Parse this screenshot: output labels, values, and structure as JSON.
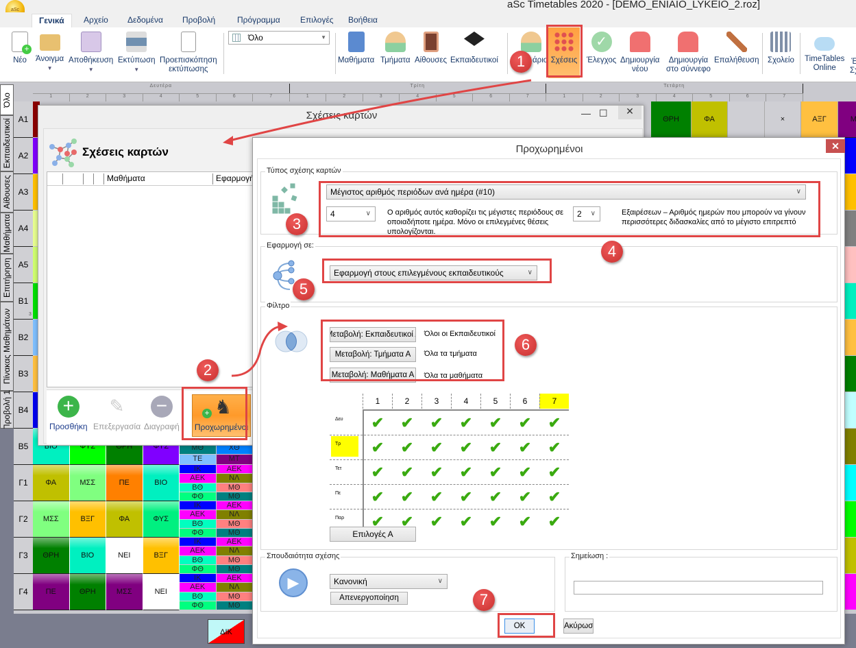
{
  "app": {
    "title": "aSc Timetables 2020  - [DEMO_ENIAIO_LYKEIO_2.roz]",
    "logo_text": "aSc"
  },
  "tabs": [
    "Γενικά",
    "Αρχείο",
    "Δεδομένα",
    "Προβολή",
    "Πρόγραμμα",
    "Επιλογές",
    "Βοήθεια"
  ],
  "ribbon": {
    "new": "Νέο",
    "open": "Άνοιγμα",
    "save": "Αποθήκευση",
    "print": "Εκτύπωση",
    "preview_1": "Προεπισκόπηση",
    "preview_2": "εκτύπωσης",
    "view_select": "Όλο",
    "subjects": "Μαθήματα",
    "classes": "Τμήματα",
    "rooms": "Αίθουσες",
    "teachers": "Εκπαιδευτικοί",
    "schedule_partial": "άριο",
    "relations": "Σχέσεις",
    "check": "Έλεγχος",
    "create_1": "Δημιουργία",
    "create_2": "νέου",
    "cloud_1": "Δημιουργία",
    "cloud_2": "στο σύννεφο",
    "verify": "Επαλήθευση",
    "school": "Σχολείο",
    "online_1": "TimeTables",
    "online_2": "Online",
    "cut_1": "Έ",
    "cut_2": "Σχ"
  },
  "side_tabs": [
    "Όλο",
    "Εκπαιδευτικοί",
    "Αίθουσες",
    "Μαθήματα",
    "Επιτήρηση",
    "Πίνακας Μαθημάτων",
    "Προβολή 1"
  ],
  "timetable": {
    "days": [
      "Δευτέρα",
      "Τρίτη",
      "Τετάρτη"
    ],
    "periods": [
      "1",
      "2",
      "3",
      "4",
      "5",
      "6",
      "7"
    ],
    "row_labels": [
      "Α1",
      "Α2",
      "Α3",
      "Α4",
      "Α5",
      "Β1",
      "Β2",
      "Β3",
      "Β4",
      "Β5",
      "Γ1",
      "Γ2",
      "Γ3",
      "Γ4"
    ],
    "b1_marker": "3",
    "row_colors": [
      "#8b0000",
      "#8000ff",
      "#ffc000",
      "#e8ff90",
      "#d0ff70",
      "#00e000",
      "#80c0ff",
      "#ffc040",
      "#0000f0"
    ],
    "lower_rows": [
      {
        "cells": [
          {
            "t": "ΒΙΟ",
            "c": "#00f0c0"
          },
          {
            "t": "ΦΥΣ",
            "c": "#00ff00"
          },
          {
            "t": "ΘΡΗ",
            "c": "#008000"
          },
          {
            "t": "ΦΥΣ",
            "c": "#8000ff"
          }
        ],
        "split5": [
          {
            "t": "ΜΘ",
            "c": "#008080"
          },
          {
            "t": "ΤΕ",
            "c": "#80c0ff"
          }
        ],
        "split6": [
          {
            "t": "ΧΘ",
            "c": "#0080ff"
          },
          {
            "t": "ΜΤ",
            "c": "#800080"
          }
        ]
      },
      {
        "cells": [
          {
            "t": "ΦΑ",
            "c": "#c0c000"
          },
          {
            "t": "ΜΣΣ",
            "c": "#80ff80"
          },
          {
            "t": "ΠΕ",
            "c": "#ff8000"
          },
          {
            "t": "ΒΙΟ",
            "c": "#00f0c0"
          }
        ],
        "split5": [
          {
            "t": "ΙΚ",
            "c": "#0000ff"
          },
          {
            "t": "ΑΕΚ",
            "c": "#ff00ff"
          },
          {
            "t": "ΒΘ",
            "c": "#00ffc0"
          },
          {
            "t": "ΦΘ",
            "c": "#00ff80"
          }
        ],
        "split6": [
          {
            "t": "ΑΕΚ",
            "c": "#ff00ff"
          },
          {
            "t": "ΝΛ",
            "c": "#808000"
          },
          {
            "t": "ΜΘ",
            "c": "#ff8080"
          },
          {
            "t": "ΜΘ",
            "c": "#008080"
          }
        ]
      },
      {
        "cells": [
          {
            "t": "ΜΣΣ",
            "c": "#80ff80"
          },
          {
            "t": "ΒΞΓ",
            "c": "#ffc000"
          },
          {
            "t": "ΦΑ",
            "c": "#c0c000"
          },
          {
            "t": "ΦΥΣ",
            "c": "#00f080"
          }
        ],
        "split5": [
          {
            "t": "ΙΚ",
            "c": "#0000ff"
          },
          {
            "t": "ΑΕΚ",
            "c": "#ff00ff"
          },
          {
            "t": "ΒΘ",
            "c": "#00ffc0"
          },
          {
            "t": "ΦΘ",
            "c": "#00ff80"
          }
        ],
        "split6": [
          {
            "t": "ΑΕΚ",
            "c": "#ff00ff"
          },
          {
            "t": "ΝΛ",
            "c": "#808000"
          },
          {
            "t": "ΜΘ",
            "c": "#ff8080"
          },
          {
            "t": "ΜΘ",
            "c": "#008080"
          }
        ]
      },
      {
        "cells": [
          {
            "t": "ΘΡΗ",
            "c": "#008000"
          },
          {
            "t": "ΒΙΟ",
            "c": "#00f0c0"
          },
          {
            "t": "ΝΕΙ",
            "c": "#ffffff"
          },
          {
            "t": "ΒΞΓ",
            "c": "#ffc000"
          }
        ],
        "split5": [
          {
            "t": "ΙΚ",
            "c": "#0000ff"
          },
          {
            "t": "ΑΕΚ",
            "c": "#ff00ff"
          },
          {
            "t": "ΒΘ",
            "c": "#00ffc0"
          },
          {
            "t": "ΦΘ",
            "c": "#00ff80"
          }
        ],
        "split6": [
          {
            "t": "ΑΕΚ",
            "c": "#ff00ff"
          },
          {
            "t": "ΝΛ",
            "c": "#808000"
          },
          {
            "t": "ΜΘ",
            "c": "#ff8080"
          },
          {
            "t": "ΜΘ",
            "c": "#008080"
          }
        ]
      },
      {
        "cells": [
          {
            "t": "ΠΕ",
            "c": "#800080"
          },
          {
            "t": "ΘΡΗ",
            "c": "#008000"
          },
          {
            "t": "ΜΣΣ",
            "c": "#800080"
          },
          {
            "t": "ΝΕΙ",
            "c": "#ffffff"
          }
        ],
        "split5": [
          {
            "t": "ΙΚ",
            "c": "#0000ff"
          },
          {
            "t": "ΑΕΚ",
            "c": "#ff00ff"
          },
          {
            "t": "ΒΘ",
            "c": "#00ffc0"
          },
          {
            "t": "ΦΘ",
            "c": "#00ff80"
          }
        ],
        "split6": [
          {
            "t": "ΑΕΚ",
            "c": "#ff00ff"
          },
          {
            "t": "ΝΛ",
            "c": "#808000"
          },
          {
            "t": "ΜΘ",
            "c": "#ff8080"
          },
          {
            "t": "ΜΘ",
            "c": "#008080"
          }
        ]
      }
    ],
    "a1_right": [
      {
        "t": "ΘΡΗ",
        "c": "#008000"
      },
      {
        "t": "ΦΑ",
        "c": "#c0c000"
      },
      {
        "t": "",
        "c": "#cfcfd4"
      },
      {
        "t": "×",
        "c": "#cfcfd4"
      },
      {
        "t": "ΑΞΓ",
        "c": "#ffc040"
      },
      {
        "t": "ΜΑ",
        "c": "#800080"
      }
    ],
    "right_strip": [
      "#0000ff",
      "#ffc000",
      "#808080",
      "#ffc0c0",
      "#00f0c0",
      "#ffc040",
      "#008000",
      "#c0ffff",
      "#808000",
      "#00ffff",
      "#00ff00",
      "#c0c000",
      "#ff00ff"
    ],
    "bottom_card": "ΔΙΚ"
  },
  "relations_dialog": {
    "title": "Σχέσεις καρτών",
    "heading": "Σχέσεις καρτών",
    "columns": [
      "",
      "",
      "",
      "Μαθήματα",
      "Εφαρμογή"
    ],
    "add": "Προσθήκη",
    "edit": "Επεξεργασία",
    "delete": "Διαγραφή",
    "advanced": "Προχωρημένοι"
  },
  "advanced_dialog": {
    "title": "Προχωρημένοι",
    "type_group": "Τύπος σχέσης καρτών",
    "type_value": "Μέγιστος αριθμός περιόδων ανά ημέρα (#10)",
    "max_value": "4",
    "max_note": "Ο αριθμός αυτός καθορίζει τις μέγιστες περιόδους σε οποιαδήποτε ημέρα. Μόνο οι επιλεγμένες θέσεις υπολογίζονται.",
    "exceptions_value": "2",
    "exceptions_note": "Εξαιρέσεων – Αριθμός ημερών που μπορούν να γίνουν περισσότερες διδασκαλίες από το μέγιστο επιτρεπτό",
    "apply_group": "Εφαρμογή σε:",
    "apply_value": "Εφαρμογή στους επιλεγμένους εκπαιδευτικούς",
    "filter_group": "Φίλτρο",
    "filters": [
      {
        "button": "Μεταβολή: Εκπαιδευτικοί Α",
        "value": "Όλοι οι Εκπαιδευτικοί"
      },
      {
        "button": "Μεταβολή: Τμήματα Α",
        "value": "Όλα τα τμήματα"
      },
      {
        "button": "Μεταβολή: Μαθήματα Α",
        "value": "Όλα τα μαθήματα"
      }
    ],
    "matrix": {
      "periods": [
        "1",
        "2",
        "3",
        "4",
        "5",
        "6",
        "7"
      ],
      "days": [
        "Δευ",
        "Τρ",
        "Τετ",
        "Πε",
        "Παρ"
      ],
      "highlight_period": "7",
      "highlight_day": "Τρ",
      "highlight_color": "#ffff00",
      "all_checked": true
    },
    "options_button": "Επιλογές Α",
    "priority_group": "Σπουδαιότητα σχέσης",
    "priority_value": "Κανονική",
    "disable_button": "Απενεργοποίηση",
    "note_group": "Σημείωση :",
    "note_value": "",
    "ok": "OK",
    "cancel": "Ακύρωση"
  },
  "annotations": [
    "1",
    "2",
    "3",
    "4",
    "5",
    "6",
    "7"
  ],
  "colors": {
    "annotation": "#e04545",
    "accent_orange": "#ff9a2a",
    "check_green": "#3aaa10"
  }
}
